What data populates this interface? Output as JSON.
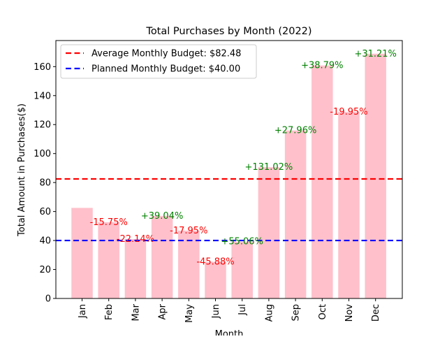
{
  "chart_data": {
    "type": "bar",
    "title": "Total Purchases by Month (2022)",
    "xlabel": "Month",
    "ylabel": "Total Amount in Purchases($)",
    "categories": [
      "Jan",
      "Feb",
      "Mar",
      "Apr",
      "May",
      "Jun",
      "Jul",
      "Aug",
      "Sep",
      "Oct",
      "Nov",
      "Dec"
    ],
    "values": [
      62.5,
      52.6,
      41.0,
      57.0,
      46.8,
      25.3,
      39.2,
      90.6,
      115.9,
      160.8,
      128.7,
      168.9
    ],
    "change_labels": [
      "",
      "-15.75%",
      "-22.14%",
      "+39.04%",
      "-17.95%",
      "-45.88%",
      "+55.06%",
      "+131.02%",
      "+27.96%",
      "+38.79%",
      "-19.95%",
      "+31.21%"
    ],
    "ylim": [
      0,
      178
    ],
    "yticks": [
      0,
      20,
      40,
      60,
      80,
      100,
      120,
      140,
      160
    ],
    "bar_color": "#ffc0cb",
    "positive_color": "#008000",
    "negative_color": "#ff0000",
    "reference_lines": [
      {
        "label": "Average Monthly Budget: $82.48",
        "value": 82.48,
        "color": "#ff0000"
      },
      {
        "label": "Planned Monthly Budget: $40.00",
        "value": 40.0,
        "color": "#0000ff"
      }
    ],
    "grid": false,
    "legend_position": "top-left"
  }
}
